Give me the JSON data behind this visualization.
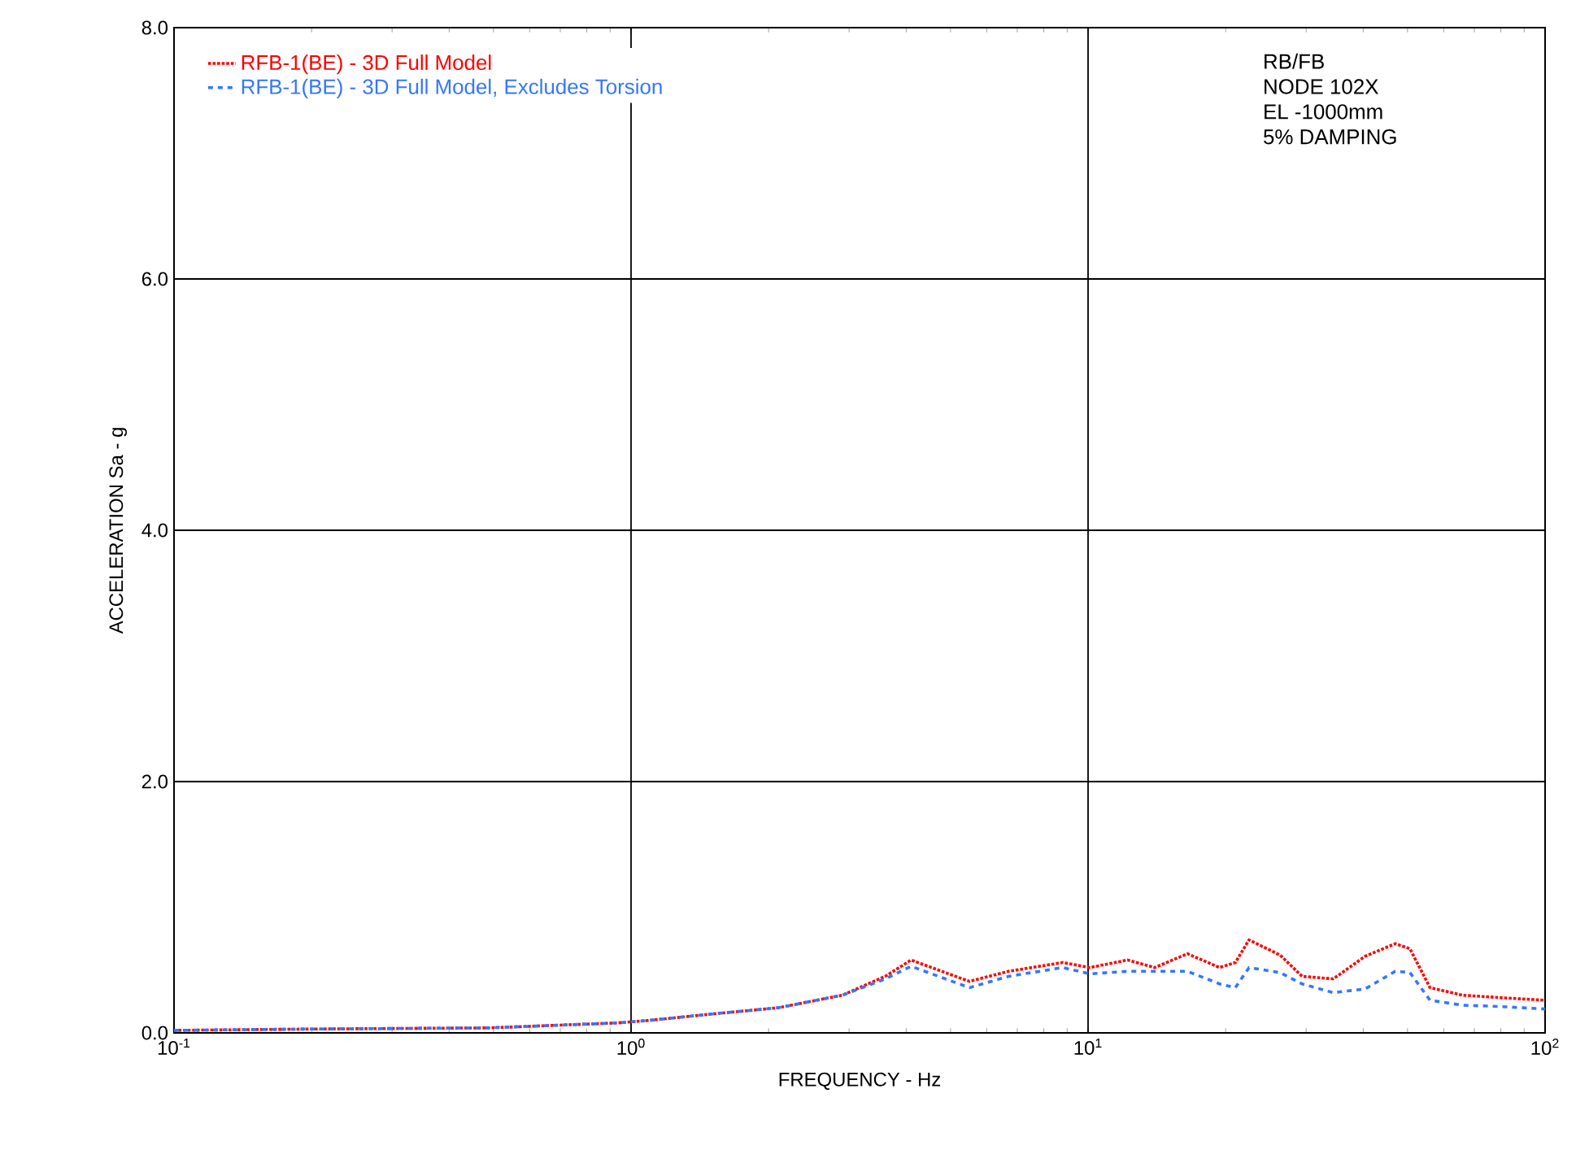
{
  "chart_data": {
    "type": "line",
    "xlabel": "FREQUENCY - Hz",
    "ylabel": "ACCELERATION Sa - g",
    "log": "x",
    "xlim": [
      0.1,
      100
    ],
    "ylim": [
      0,
      8
    ],
    "xticks": [
      {
        "value": 0.1,
        "label": "10$^{-1}$"
      },
      {
        "value": 1,
        "label": "10$^{0}$"
      },
      {
        "value": 10,
        "label": "10$^{1}$"
      },
      {
        "value": 100,
        "label": "10$^{2}$"
      }
    ],
    "yticks": [
      {
        "value": 0,
        "label": "0.0"
      },
      {
        "value": 2,
        "label": "2.0"
      },
      {
        "value": 4,
        "label": "4.0"
      },
      {
        "value": 6,
        "label": "6.0"
      },
      {
        "value": 8,
        "label": "8.0"
      }
    ],
    "grid": true,
    "legend": "top left",
    "marker": "none",
    "annotations": [
      "RB/FB",
      "NODE 102X",
      "EL -1000mm",
      "5% DAMPING"
    ],
    "x": [
      0.1,
      0.19,
      0.49,
      0.94,
      1.1,
      1.5,
      2.1,
      2.9,
      3.6,
      4.1,
      5.5,
      6.7,
      8.8,
      10.1,
      12.2,
      14,
      16.5,
      19.4,
      21,
      22.5,
      26.3,
      29.4,
      34.4,
      40.4,
      47,
      50.6,
      56,
      66,
      80,
      100
    ],
    "series": [
      {
        "name": "RFB-1(BE) - 3D Full Model",
        "color": "#ff0000",
        "line_style": "dotted",
        "values": [
          0.02,
          0.03,
          0.04,
          0.08,
          0.1,
          0.15,
          0.2,
          0.3,
          0.45,
          0.58,
          0.41,
          0.49,
          0.56,
          0.52,
          0.58,
          0.52,
          0.63,
          0.52,
          0.56,
          0.74,
          0.62,
          0.45,
          0.43,
          0.61,
          0.71,
          0.67,
          0.36,
          0.3,
          0.28,
          0.26
        ]
      },
      {
        "name": "RFB-1(BE) - 3D Full Model, Excludes Torsion",
        "color": "#3377ff",
        "line_style": "dashed",
        "values": [
          0.02,
          0.03,
          0.04,
          0.08,
          0.1,
          0.15,
          0.2,
          0.3,
          0.43,
          0.53,
          0.36,
          0.45,
          0.52,
          0.47,
          0.49,
          0.49,
          0.49,
          0.39,
          0.36,
          0.52,
          0.48,
          0.39,
          0.32,
          0.35,
          0.49,
          0.48,
          0.26,
          0.22,
          0.21,
          0.19
        ]
      }
    ]
  }
}
